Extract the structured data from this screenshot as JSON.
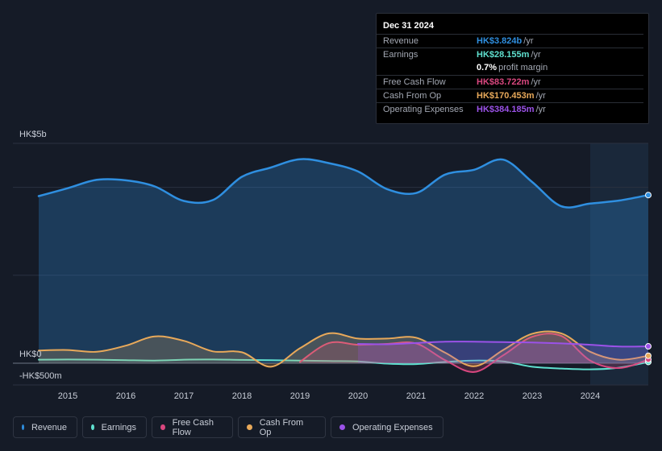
{
  "tooltip": {
    "date": "Dec 31 2024",
    "rows": [
      {
        "label": "Revenue",
        "value": "HK$3.824b",
        "unit": "/yr",
        "color": "#2f8fe0"
      },
      {
        "label": "Earnings",
        "value": "HK$28.155m",
        "unit": "/yr",
        "color": "#5fe0cf"
      },
      {
        "label": "",
        "value": "0.7%",
        "unit": "profit margin",
        "color": "#ffffff"
      },
      {
        "label": "Free Cash Flow",
        "value": "HK$83.722m",
        "unit": "/yr",
        "color": "#d9477f"
      },
      {
        "label": "Cash From Op",
        "value": "HK$170.453m",
        "unit": "/yr",
        "color": "#e8a95a"
      },
      {
        "label": "Operating Expenses",
        "value": "HK$384.185m",
        "unit": "/yr",
        "color": "#9b52e8"
      }
    ]
  },
  "legend": [
    {
      "label": "Revenue",
      "color": "#2f8fe0"
    },
    {
      "label": "Earnings",
      "color": "#5fe0cf"
    },
    {
      "label": "Free Cash Flow",
      "color": "#d9477f"
    },
    {
      "label": "Cash From Op",
      "color": "#e8a95a"
    },
    {
      "label": "Operating Expenses",
      "color": "#9b52e8"
    }
  ],
  "chart_data": {
    "type": "area",
    "unit": "HK$ millions",
    "y_tick_labels": [
      "HK$5b",
      "HK$0",
      "-HK$500m"
    ],
    "ylim": [
      -500,
      5000
    ],
    "xlim": [
      2014.5,
      2025.0
    ],
    "x_tick_labels": [
      "2015",
      "2016",
      "2017",
      "2018",
      "2019",
      "2020",
      "2021",
      "2022",
      "2023",
      "2024"
    ],
    "highlight_start": 2024.0,
    "series": [
      {
        "name": "Revenue",
        "color": "#2f8fe0",
        "filled": true,
        "points": [
          [
            2014.5,
            3800
          ],
          [
            2015.0,
            3980
          ],
          [
            2015.5,
            4170
          ],
          [
            2016.0,
            4160
          ],
          [
            2016.5,
            4020
          ],
          [
            2017.0,
            3690
          ],
          [
            2017.5,
            3710
          ],
          [
            2018.0,
            4240
          ],
          [
            2018.5,
            4450
          ],
          [
            2019.0,
            4640
          ],
          [
            2019.5,
            4550
          ],
          [
            2020.0,
            4360
          ],
          [
            2020.5,
            3960
          ],
          [
            2021.0,
            3870
          ],
          [
            2021.5,
            4290
          ],
          [
            2022.0,
            4400
          ],
          [
            2022.5,
            4630
          ],
          [
            2023.0,
            4120
          ],
          [
            2023.5,
            3570
          ],
          [
            2024.0,
            3630
          ],
          [
            2024.5,
            3700
          ],
          [
            2025.0,
            3824
          ]
        ]
      },
      {
        "name": "Earnings",
        "color": "#5fe0cf",
        "filled": false,
        "points": [
          [
            2014.5,
            80
          ],
          [
            2015.0,
            85
          ],
          [
            2015.5,
            80
          ],
          [
            2016.0,
            70
          ],
          [
            2016.5,
            60
          ],
          [
            2017.0,
            80
          ],
          [
            2017.5,
            85
          ],
          [
            2018.0,
            75
          ],
          [
            2018.5,
            70
          ],
          [
            2019.0,
            60
          ],
          [
            2019.5,
            50
          ],
          [
            2020.0,
            40
          ],
          [
            2020.5,
            -10
          ],
          [
            2021.0,
            -20
          ],
          [
            2021.5,
            30
          ],
          [
            2022.0,
            60
          ],
          [
            2022.5,
            40
          ],
          [
            2023.0,
            -80
          ],
          [
            2023.5,
            -120
          ],
          [
            2024.0,
            -140
          ],
          [
            2024.5,
            -100
          ],
          [
            2025.0,
            28
          ]
        ]
      },
      {
        "name": "Free Cash Flow",
        "color": "#d9477f",
        "filled": true,
        "points": [
          [
            2019.0,
            30
          ],
          [
            2019.5,
            460
          ],
          [
            2020.0,
            420
          ],
          [
            2020.5,
            440
          ],
          [
            2021.0,
            450
          ],
          [
            2021.5,
            70
          ],
          [
            2022.0,
            -200
          ],
          [
            2022.5,
            180
          ],
          [
            2023.0,
            600
          ],
          [
            2023.5,
            620
          ],
          [
            2024.0,
            60
          ],
          [
            2024.5,
            -110
          ],
          [
            2025.0,
            84
          ]
        ]
      },
      {
        "name": "Cash From Op",
        "color": "#e8a95a",
        "filled": true,
        "points": [
          [
            2014.5,
            290
          ],
          [
            2015.0,
            300
          ],
          [
            2015.5,
            260
          ],
          [
            2016.0,
            400
          ],
          [
            2016.5,
            610
          ],
          [
            2017.0,
            510
          ],
          [
            2017.5,
            270
          ],
          [
            2018.0,
            250
          ],
          [
            2018.5,
            -80
          ],
          [
            2019.0,
            340
          ],
          [
            2019.5,
            680
          ],
          [
            2020.0,
            560
          ],
          [
            2020.5,
            560
          ],
          [
            2021.0,
            580
          ],
          [
            2021.5,
            240
          ],
          [
            2022.0,
            -70
          ],
          [
            2022.5,
            300
          ],
          [
            2023.0,
            670
          ],
          [
            2023.5,
            680
          ],
          [
            2024.0,
            260
          ],
          [
            2024.5,
            80
          ],
          [
            2025.0,
            170
          ]
        ]
      },
      {
        "name": "Operating Expenses",
        "color": "#9b52e8",
        "filled": true,
        "points": [
          [
            2020.0,
            440
          ],
          [
            2020.5,
            430
          ],
          [
            2021.0,
            460
          ],
          [
            2021.5,
            490
          ],
          [
            2022.0,
            490
          ],
          [
            2022.5,
            480
          ],
          [
            2023.0,
            470
          ],
          [
            2023.5,
            450
          ],
          [
            2024.0,
            420
          ],
          [
            2024.5,
            380
          ],
          [
            2025.0,
            384
          ]
        ]
      }
    ]
  }
}
